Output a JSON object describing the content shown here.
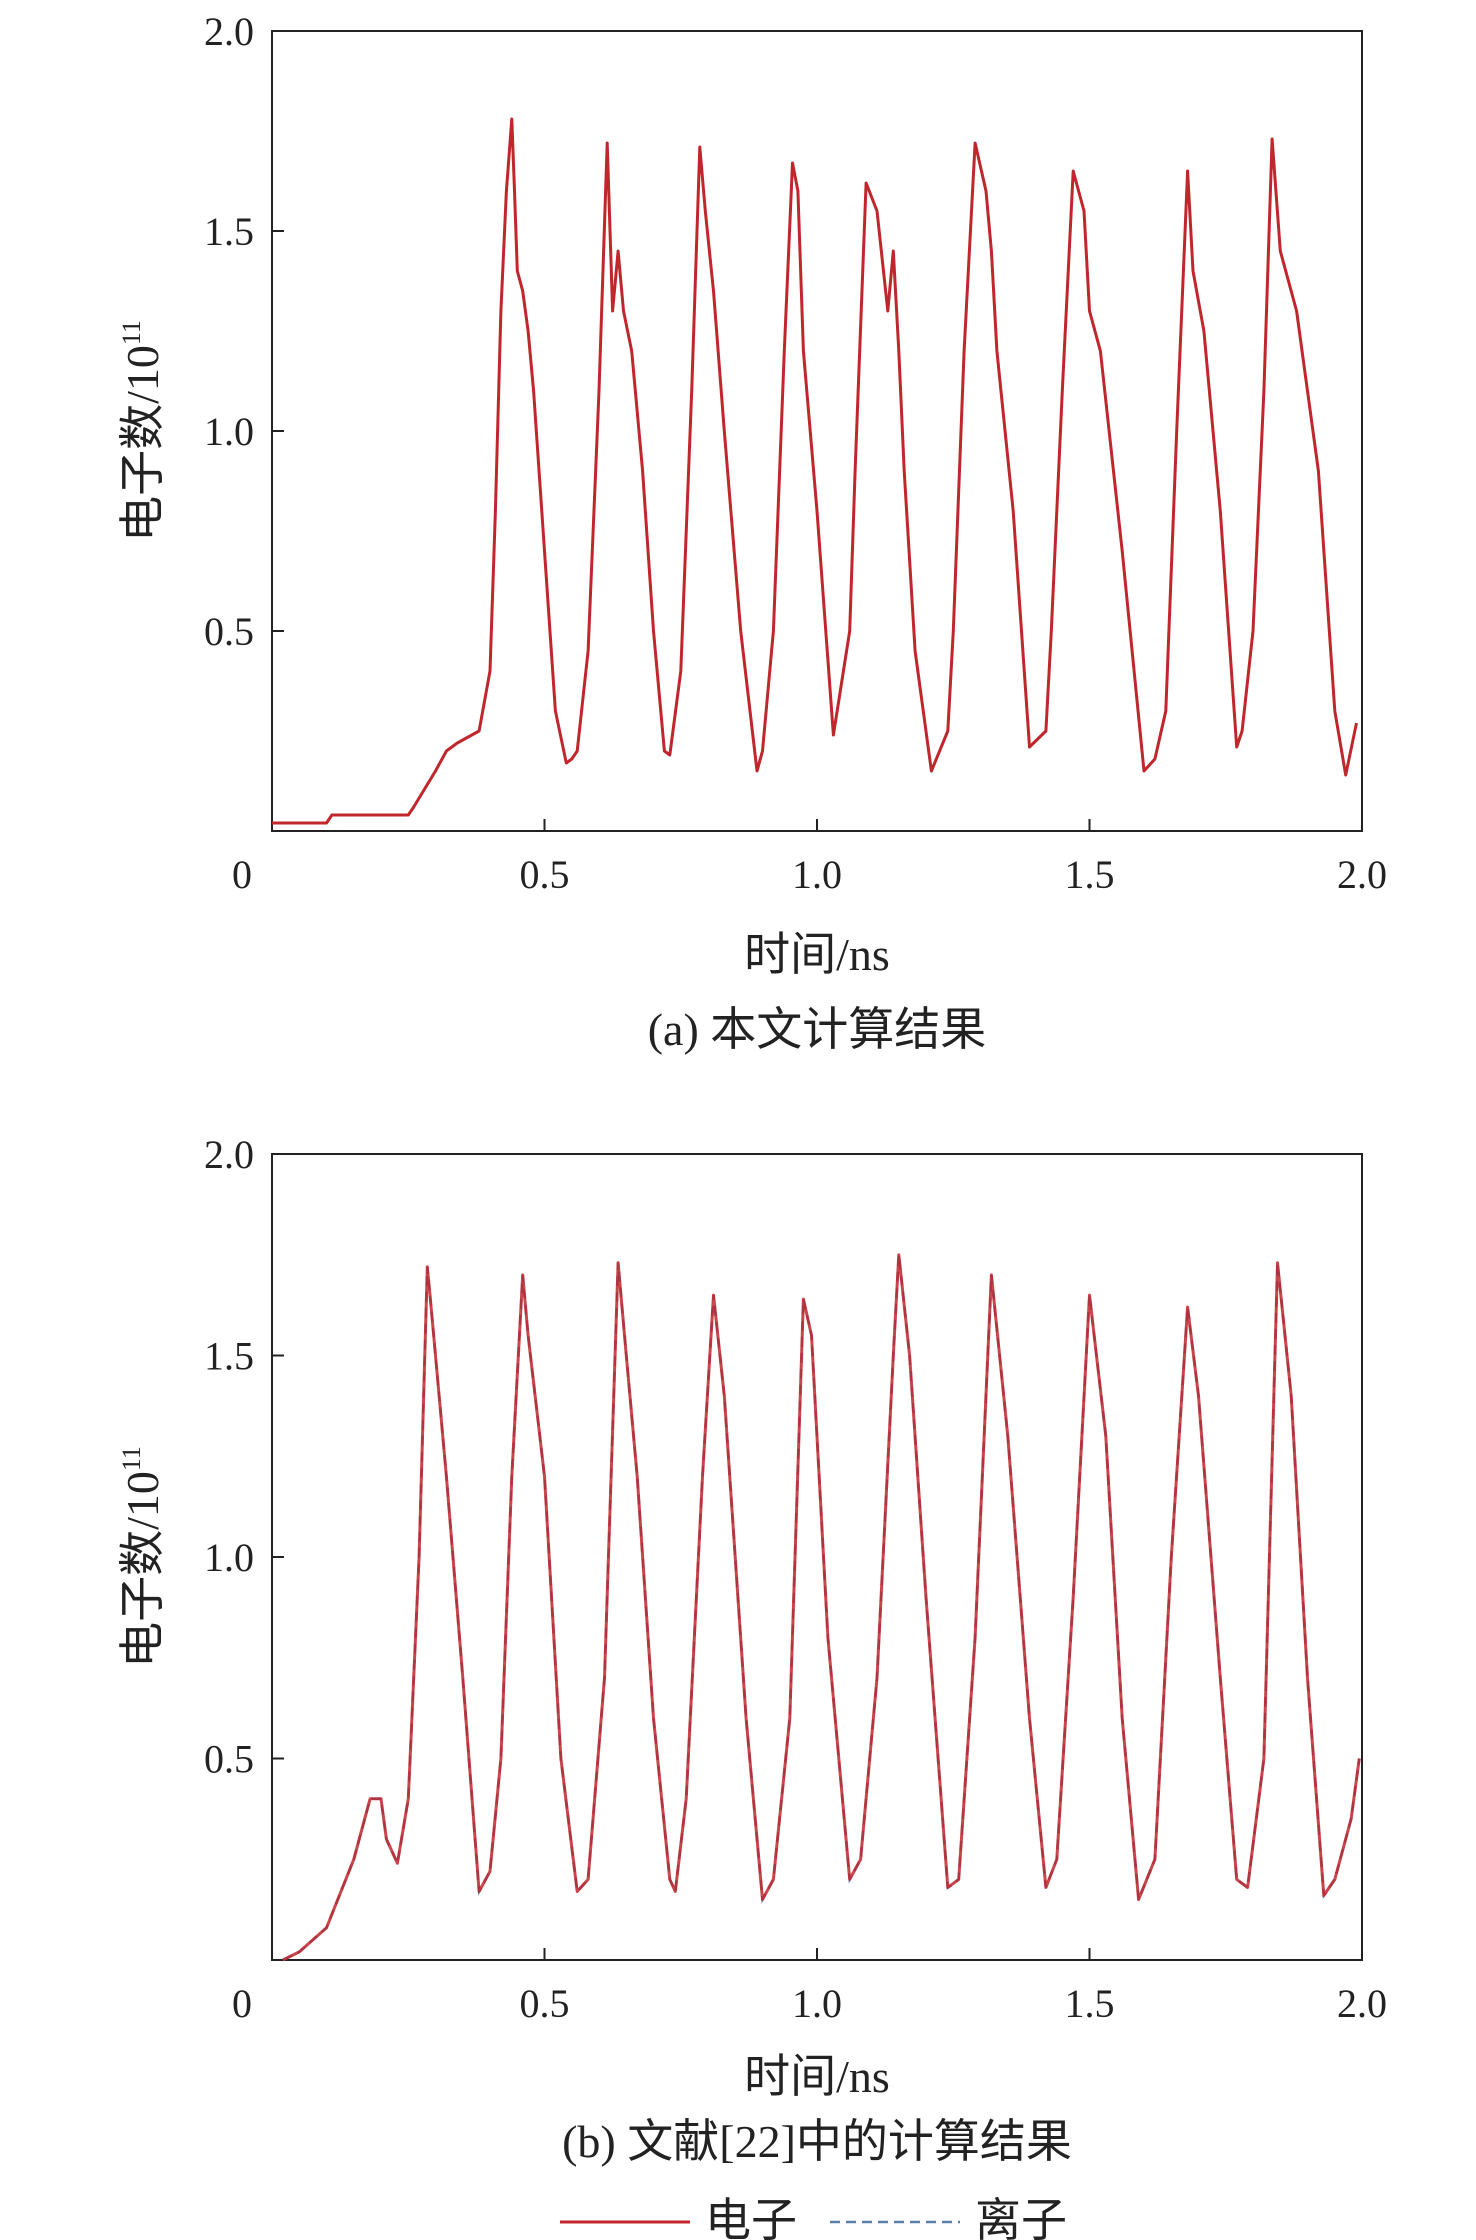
{
  "chart_data": [
    {
      "type": "line",
      "caption": "(a) 本文计算结果",
      "xlabel": "时间/ns",
      "ylabel_main": "电子数/10",
      "ylabel_sup": "11",
      "xlim": [
        0,
        2.0
      ],
      "ylim": [
        0,
        2.0
      ],
      "x_ticks": [
        "0",
        "0.5",
        "1.0",
        "1.5",
        "2.0"
      ],
      "y_ticks": [
        "0.5",
        "1.0",
        "1.5",
        "2.0"
      ],
      "color": "#c0272d",
      "series": [
        {
          "x": [
            0.0,
            0.1,
            0.11,
            0.25,
            0.26,
            0.3,
            0.32,
            0.34,
            0.38,
            0.4,
            0.41,
            0.42,
            0.43,
            0.44,
            0.445,
            0.45,
            0.46,
            0.47,
            0.48,
            0.5,
            0.52,
            0.54,
            0.55,
            0.56,
            0.58,
            0.6,
            0.615,
            0.625,
            0.635,
            0.645,
            0.66,
            0.68,
            0.7,
            0.72,
            0.73,
            0.75,
            0.77,
            0.785,
            0.795,
            0.81,
            0.83,
            0.86,
            0.89,
            0.9,
            0.92,
            0.94,
            0.955,
            0.965,
            0.975,
            1.0,
            1.03,
            1.06,
            1.07,
            1.09,
            1.11,
            1.13,
            1.14,
            1.15,
            1.16,
            1.18,
            1.21,
            1.24,
            1.25,
            1.27,
            1.29,
            1.31,
            1.32,
            1.33,
            1.36,
            1.39,
            1.42,
            1.43,
            1.45,
            1.47,
            1.49,
            1.5,
            1.52,
            1.56,
            1.6,
            1.62,
            1.64,
            1.66,
            1.68,
            1.69,
            1.71,
            1.74,
            1.77,
            1.78,
            1.8,
            1.82,
            1.835,
            1.85,
            1.88,
            1.92,
            1.95,
            1.97,
            1.99
          ],
          "y": [
            0.02,
            0.02,
            0.04,
            0.04,
            0.06,
            0.15,
            0.2,
            0.22,
            0.25,
            0.4,
            0.8,
            1.3,
            1.6,
            1.78,
            1.6,
            1.4,
            1.35,
            1.25,
            1.1,
            0.7,
            0.3,
            0.17,
            0.18,
            0.2,
            0.45,
            1.1,
            1.72,
            1.3,
            1.45,
            1.3,
            1.2,
            0.9,
            0.5,
            0.2,
            0.19,
            0.4,
            1.1,
            1.71,
            1.55,
            1.35,
            1.0,
            0.5,
            0.15,
            0.2,
            0.5,
            1.2,
            1.67,
            1.6,
            1.2,
            0.8,
            0.24,
            0.5,
            0.9,
            1.62,
            1.55,
            1.3,
            1.45,
            1.2,
            0.9,
            0.45,
            0.15,
            0.25,
            0.5,
            1.2,
            1.72,
            1.6,
            1.45,
            1.2,
            0.8,
            0.21,
            0.25,
            0.5,
            1.1,
            1.65,
            1.55,
            1.3,
            1.2,
            0.7,
            0.15,
            0.18,
            0.3,
            1.0,
            1.65,
            1.4,
            1.25,
            0.8,
            0.21,
            0.25,
            0.5,
            1.1,
            1.73,
            1.45,
            1.3,
            0.9,
            0.3,
            0.14,
            0.27
          ]
        }
      ]
    },
    {
      "type": "line",
      "caption": "(b) 文献[22]中的计算结果",
      "xlabel": "时间/ns",
      "ylabel_main": "电子数/10",
      "ylabel_sup": "11",
      "xlim": [
        0,
        2.0
      ],
      "ylim": [
        0,
        2.0
      ],
      "x_ticks": [
        "0",
        "0.5",
        "1.0",
        "1.5",
        "2.0"
      ],
      "y_ticks": [
        "0.5",
        "1.0",
        "1.5",
        "2.0"
      ],
      "color": "#c0272d",
      "series": [
        {
          "name": "电子",
          "x": [
            0.02,
            0.05,
            0.1,
            0.15,
            0.18,
            0.2,
            0.21,
            0.23,
            0.25,
            0.27,
            0.285,
            0.29,
            0.3,
            0.32,
            0.35,
            0.38,
            0.4,
            0.42,
            0.44,
            0.46,
            0.47,
            0.5,
            0.53,
            0.56,
            0.58,
            0.61,
            0.635,
            0.65,
            0.67,
            0.7,
            0.73,
            0.74,
            0.76,
            0.79,
            0.81,
            0.83,
            0.87,
            0.9,
            0.92,
            0.95,
            0.975,
            0.99,
            1.02,
            1.06,
            1.08,
            1.11,
            1.14,
            1.15,
            1.17,
            1.2,
            1.24,
            1.26,
            1.29,
            1.32,
            1.35,
            1.39,
            1.42,
            1.44,
            1.47,
            1.5,
            1.53,
            1.56,
            1.59,
            1.62,
            1.65,
            1.68,
            1.7,
            1.74,
            1.77,
            1.79,
            1.82,
            1.845,
            1.87,
            1.9,
            1.93,
            1.95,
            1.98,
            1.995
          ],
          "y": [
            0.0,
            0.02,
            0.08,
            0.25,
            0.4,
            0.4,
            0.3,
            0.24,
            0.4,
            1.0,
            1.72,
            1.65,
            1.5,
            1.2,
            0.7,
            0.17,
            0.22,
            0.5,
            1.2,
            1.7,
            1.55,
            1.2,
            0.5,
            0.17,
            0.2,
            0.7,
            1.73,
            1.5,
            1.2,
            0.6,
            0.2,
            0.17,
            0.4,
            1.2,
            1.65,
            1.4,
            0.6,
            0.15,
            0.2,
            0.6,
            1.64,
            1.55,
            0.8,
            0.2,
            0.25,
            0.7,
            1.5,
            1.75,
            1.5,
            0.9,
            0.18,
            0.2,
            0.8,
            1.7,
            1.3,
            0.6,
            0.18,
            0.25,
            0.9,
            1.65,
            1.3,
            0.6,
            0.15,
            0.25,
            1.0,
            1.62,
            1.4,
            0.7,
            0.2,
            0.18,
            0.5,
            1.73,
            1.4,
            0.7,
            0.16,
            0.2,
            0.35,
            0.5
          ]
        },
        {
          "name": "离子",
          "color": "#5b7fa8"
        }
      ]
    }
  ],
  "legend": {
    "electron_label": "电子",
    "ion_label": "离子"
  }
}
